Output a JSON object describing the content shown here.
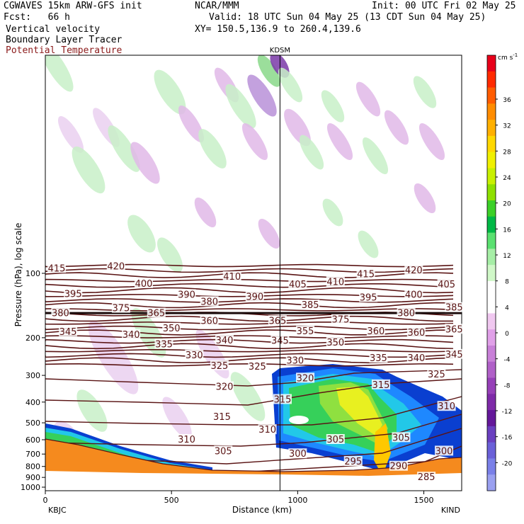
{
  "header": {
    "model": "CGWAVES 15km ARW-GFS init",
    "org": "NCAR/MMM",
    "init": "Init: 00 UTC Fri 02 May 25",
    "fcst": "Fcst:   66 h",
    "valid": "Valid: 18 UTC Sun 04 May 25 (13 CDT Sun 04 May 25)",
    "field1": "Vertical velocity",
    "field2": "Boundary Layer Tracer",
    "field3": "Potential Temperature",
    "xy": "XY= 150.5,136.9 to 260.4,139.6"
  },
  "colors": {
    "theta": "#5a1414",
    "ground": "#f58a1e",
    "field3_text": "#8b1a1a"
  },
  "chart_data": {
    "type": "cross-section",
    "x_axis": {
      "label": "Distance (km)",
      "range": [
        0,
        1650
      ],
      "ticks": [
        0,
        500,
        1000,
        1500
      ],
      "tick_labels": [
        "0",
        "500",
        "1000",
        "1500"
      ],
      "left_station": "KBJC",
      "right_station": "KIND"
    },
    "y_axis": {
      "label": "Pressure (hPa), log scale",
      "scale": "log",
      "ticks": [
        100,
        200,
        300,
        400,
        500,
        600,
        700,
        800,
        900,
        1000
      ],
      "tick_labels": [
        "100",
        "200",
        "300",
        "400",
        "500",
        "600",
        "700",
        "800",
        "900",
        "1000"
      ]
    },
    "marker": {
      "label": "KDSM",
      "x_km": 930
    },
    "colorbar": {
      "unit": "cm s",
      "unit_exp": "-1",
      "labels": [
        "36",
        "32",
        "28",
        "24",
        "20",
        "16",
        "12",
        "8",
        "4",
        "0",
        "-4",
        "-8",
        "-12",
        "-16",
        "-20"
      ],
      "colors": [
        "#e8001a",
        "#ff2a00",
        "#ff5c00",
        "#ff8c00",
        "#ffb000",
        "#ffd800",
        "#f0f000",
        "#c8f000",
        "#8ee000",
        "#3cd028",
        "#00b846",
        "#5ae070",
        "#a6eea6",
        "#d0f8c8",
        "#ffffff",
        "#ffffff",
        "#f0c8f0",
        "#e0a0e8",
        "#c880d8",
        "#b060c8",
        "#9640b8",
        "#7e2aa8",
        "#64189a",
        "#6a40c0",
        "#6a60d8",
        "#7a80e8",
        "#9aa0f0"
      ]
    },
    "isentrope_labels": [
      {
        "t": "415",
        "x": 45,
        "p": 95
      },
      {
        "t": "420",
        "x": 280,
        "p": 93
      },
      {
        "t": "410",
        "x": 740,
        "p": 104
      },
      {
        "t": "415",
        "x": 1270,
        "p": 101
      },
      {
        "t": "420",
        "x": 1460,
        "p": 97
      },
      {
        "t": "395",
        "x": 110,
        "p": 125
      },
      {
        "t": "400",
        "x": 390,
        "p": 112
      },
      {
        "t": "390",
        "x": 560,
        "p": 126
      },
      {
        "t": "390",
        "x": 830,
        "p": 129
      },
      {
        "t": "405",
        "x": 1000,
        "p": 113
      },
      {
        "t": "410",
        "x": 1150,
        "p": 110
      },
      {
        "t": "395",
        "x": 1280,
        "p": 130
      },
      {
        "t": "400",
        "x": 1460,
        "p": 126
      },
      {
        "t": "405",
        "x": 1590,
        "p": 113
      },
      {
        "t": "380",
        "x": 650,
        "p": 136
      },
      {
        "t": "385",
        "x": 1050,
        "p": 141
      },
      {
        "t": "380",
        "x": 60,
        "p": 154
      },
      {
        "t": "375",
        "x": 300,
        "p": 146
      },
      {
        "t": "365",
        "x": 440,
        "p": 154
      },
      {
        "t": "385",
        "x": 1620,
        "p": 145
      },
      {
        "t": "360",
        "x": 650,
        "p": 167
      },
      {
        "t": "365",
        "x": 920,
        "p": 167
      },
      {
        "t": "375",
        "x": 1170,
        "p": 165
      },
      {
        "t": "380",
        "x": 1430,
        "p": 154
      },
      {
        "t": "345",
        "x": 90,
        "p": 188
      },
      {
        "t": "340",
        "x": 340,
        "p": 194
      },
      {
        "t": "350",
        "x": 500,
        "p": 181
      },
      {
        "t": "355",
        "x": 1030,
        "p": 187
      },
      {
        "t": "360",
        "x": 1310,
        "p": 187
      },
      {
        "t": "360",
        "x": 1470,
        "p": 190
      },
      {
        "t": "365",
        "x": 1620,
        "p": 183
      },
      {
        "t": "335",
        "x": 470,
        "p": 215
      },
      {
        "t": "340",
        "x": 710,
        "p": 206
      },
      {
        "t": "345",
        "x": 930,
        "p": 207
      },
      {
        "t": "350",
        "x": 1150,
        "p": 211
      },
      {
        "t": "330",
        "x": 590,
        "p": 242
      },
      {
        "t": "330",
        "x": 990,
        "p": 256
      },
      {
        "t": "335",
        "x": 1320,
        "p": 250
      },
      {
        "t": "340",
        "x": 1470,
        "p": 250
      },
      {
        "t": "345",
        "x": 1620,
        "p": 240
      },
      {
        "t": "325",
        "x": 690,
        "p": 271
      },
      {
        "t": "325",
        "x": 840,
        "p": 274
      },
      {
        "t": "325",
        "x": 1550,
        "p": 298
      },
      {
        "t": "320",
        "x": 710,
        "p": 340
      },
      {
        "t": "320",
        "x": 1030,
        "p": 310
      },
      {
        "t": "315",
        "x": 1330,
        "p": 333
      },
      {
        "t": "315",
        "x": 940,
        "p": 390
      },
      {
        "t": "310",
        "x": 1590,
        "p": 420
      },
      {
        "t": "315",
        "x": 700,
        "p": 470
      },
      {
        "t": "310",
        "x": 880,
        "p": 540
      },
      {
        "t": "310",
        "x": 560,
        "p": 600
      },
      {
        "t": "305",
        "x": 1150,
        "p": 600
      },
      {
        "t": "305",
        "x": 1410,
        "p": 588
      },
      {
        "t": "305",
        "x": 705,
        "p": 680
      },
      {
        "t": "300",
        "x": 1000,
        "p": 700
      },
      {
        "t": "300",
        "x": 1580,
        "p": 680
      },
      {
        "t": "295",
        "x": 1220,
        "p": 760
      },
      {
        "t": "290",
        "x": 1400,
        "p": 800
      },
      {
        "t": "285",
        "x": 1510,
        "p": 900
      }
    ]
  }
}
